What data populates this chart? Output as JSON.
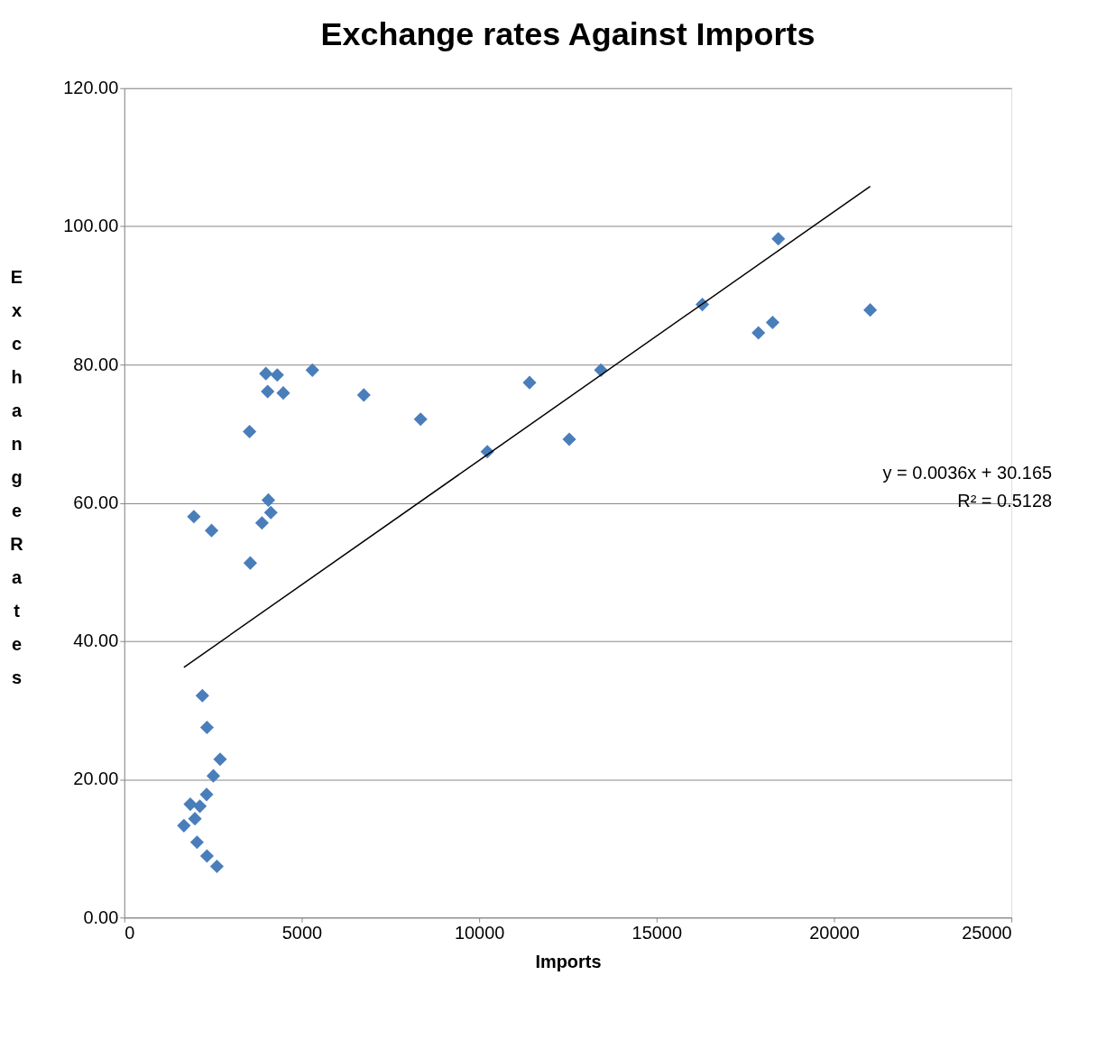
{
  "chart_data": {
    "type": "scatter",
    "title": "Exchange rates Against Imports",
    "xlabel": "Imports",
    "ylabel": "Exchange Rates",
    "xlim": [
      0,
      25000
    ],
    "xticks": [
      0,
      5000,
      10000,
      15000,
      20000,
      25000
    ],
    "ylim": [
      0,
      120
    ],
    "yticks": [
      {
        "value": 0,
        "label": "0.00"
      },
      {
        "value": 20,
        "label": "20.00"
      },
      {
        "value": 40,
        "label": "40.00"
      },
      {
        "value": 60,
        "label": "60.00"
      },
      {
        "value": 80,
        "label": "80.00"
      },
      {
        "value": 100,
        "label": "100.00"
      },
      {
        "value": 120,
        "label": "120.00"
      }
    ],
    "grid": "y",
    "series": [
      {
        "marker": "diamond",
        "color": "#4a7ebb",
        "x": [
          2200,
          2330,
          2700,
          2510,
          2320,
          1860,
          2130,
          1990,
          1680,
          2050,
          2330,
          2610,
          3990,
          4310,
          5300,
          4040,
          4480,
          3530,
          4060,
          4130,
          3880,
          1960,
          2460,
          3550,
          6750,
          8350,
          10230,
          11420,
          12540,
          13430,
          16290,
          17870,
          18270,
          18430,
          21020
        ],
        "values": [
          32.1,
          27.5,
          22.9,
          20.5,
          17.8,
          16.4,
          16.1,
          14.3,
          13.3,
          10.9,
          8.9,
          7.4,
          78.7,
          78.5,
          79.2,
          76.1,
          75.9,
          70.3,
          60.4,
          58.6,
          57.1,
          58.0,
          56.0,
          51.3,
          75.6,
          72.1,
          67.4,
          77.4,
          69.2,
          79.2,
          88.7,
          84.6,
          86.1,
          98.2,
          87.9
        ]
      },
      {
        "type": "line",
        "marker": "none",
        "color": "#000000",
        "x": [
          1680,
          21020
        ],
        "values": [
          36.2,
          105.8
        ]
      }
    ],
    "annotations": [
      "y = 0.0036x + 30.165",
      "R² = 0.5128"
    ]
  }
}
